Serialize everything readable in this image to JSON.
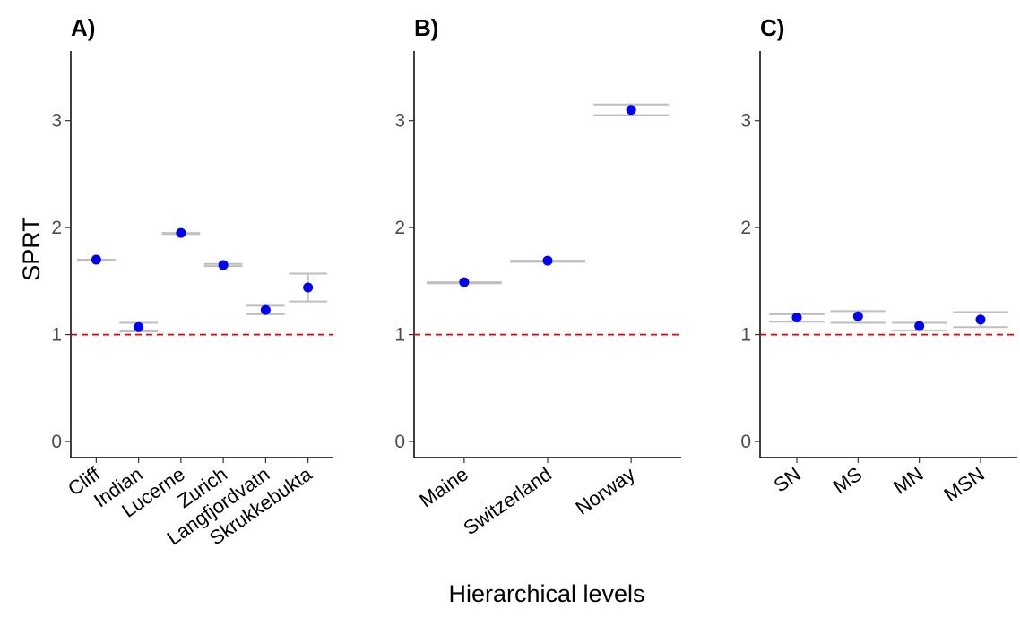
{
  "chart_data": [
    {
      "type": "scatter",
      "panel": "A)",
      "ylabel": "SPRT",
      "ylim": [
        -0.15,
        3.65
      ],
      "yticks": [
        "0",
        "1",
        "2",
        "3"
      ],
      "categories": [
        "Cliff",
        "Indian",
        "Lucerne",
        "Zurich",
        "Langfjordvatn",
        "Skrukkebukta"
      ],
      "values": [
        1.7,
        1.07,
        1.95,
        1.65,
        1.23,
        1.44
      ],
      "lower": [
        1.69,
        1.03,
        1.94,
        1.64,
        1.19,
        1.31
      ],
      "upper": [
        1.7,
        1.11,
        1.95,
        1.66,
        1.27,
        1.57
      ],
      "reference_line": 1
    },
    {
      "type": "scatter",
      "panel": "B)",
      "ylim": [
        -0.15,
        3.65
      ],
      "yticks": [
        "0",
        "1",
        "2",
        "3"
      ],
      "categories": [
        "Maine",
        "Switzerland",
        "Norway"
      ],
      "values": [
        1.49,
        1.69,
        3.1
      ],
      "lower": [
        1.48,
        1.68,
        3.05
      ],
      "upper": [
        1.49,
        1.69,
        3.15
      ],
      "reference_line": 1
    },
    {
      "type": "scatter",
      "panel": "C)",
      "ylim": [
        -0.15,
        3.65
      ],
      "yticks": [
        "0",
        "1",
        "2",
        "3"
      ],
      "categories": [
        "SN",
        "MS",
        "MN",
        "MSN"
      ],
      "values": [
        1.16,
        1.17,
        1.08,
        1.14
      ],
      "lower": [
        1.12,
        1.11,
        1.04,
        1.07
      ],
      "upper": [
        1.19,
        1.22,
        1.11,
        1.21
      ],
      "reference_line": 1
    }
  ],
  "xlabel": "Hierarchical levels",
  "colors": {
    "point": "#0000ee",
    "errorbar": "#bebebe",
    "reference": "#ee0000",
    "axis": "#000000"
  }
}
